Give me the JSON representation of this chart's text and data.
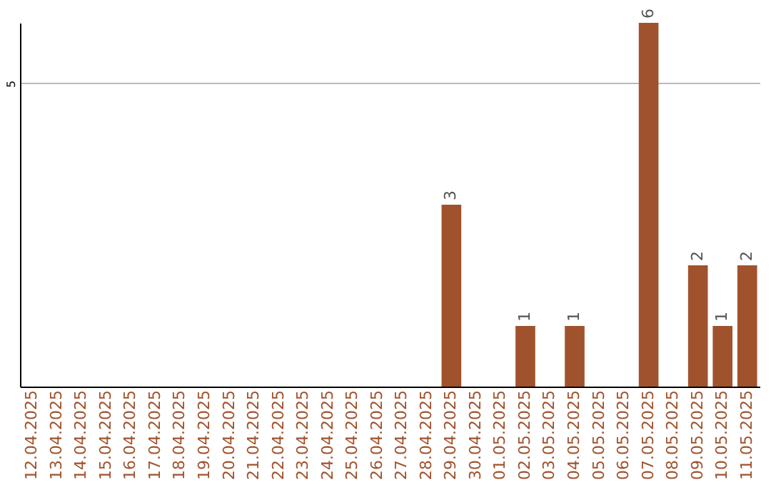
{
  "chart_data": {
    "type": "bar",
    "categories": [
      "12.04.2025",
      "13.04.2025",
      "14.04.2025",
      "15.04.2025",
      "16.04.2025",
      "17.04.2025",
      "18.04.2025",
      "19.04.2025",
      "20.04.2025",
      "21.04.2025",
      "22.04.2025",
      "23.04.2025",
      "24.04.2025",
      "25.04.2025",
      "26.04.2025",
      "27.04.2025",
      "28.04.2025",
      "29.04.2025",
      "30.04.2025",
      "01.05.2025",
      "02.05.2025",
      "03.05.2025",
      "04.05.2025",
      "05.05.2025",
      "06.05.2025",
      "07.05.2025",
      "08.05.2025",
      "09.05.2025",
      "10.05.2025",
      "11.05.2025"
    ],
    "values": [
      null,
      null,
      null,
      null,
      null,
      null,
      null,
      null,
      null,
      null,
      null,
      null,
      null,
      null,
      null,
      null,
      null,
      3,
      null,
      null,
      1,
      null,
      1,
      null,
      null,
      6,
      null,
      2,
      1,
      2
    ],
    "color": "#a0522d",
    "ylim": [
      0,
      6
    ],
    "yticks": [
      5
    ],
    "grid": "y",
    "data_labels": true
  }
}
